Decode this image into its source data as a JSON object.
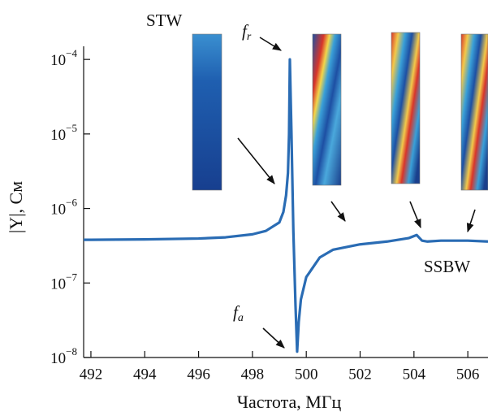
{
  "chart_data": {
    "type": "line",
    "xlabel": "Частота, МГц",
    "ylabel": "|Y|, См",
    "log_y": true,
    "xlim": [
      491.73,
      506.75
    ],
    "ylim": [
      1e-08,
      0.00015
    ],
    "xticks": [
      492,
      494,
      496,
      498,
      500,
      502,
      504,
      506
    ],
    "yticks": [
      {
        "value": 1e-08,
        "label": "10",
        "exponent": "−8"
      },
      {
        "value": 1e-07,
        "label": "10",
        "exponent": "−7"
      },
      {
        "value": 1e-06,
        "label": "10",
        "exponent": "−6"
      },
      {
        "value": 1e-05,
        "label": "10",
        "exponent": "−5"
      },
      {
        "value": 0.0001,
        "label": "10",
        "exponent": "−4"
      }
    ],
    "series": [
      {
        "color": "#2a6cb4",
        "x": [
          491.73,
          492,
          494,
          496,
          497,
          498,
          498.5,
          499,
          499.15,
          499.25,
          499.32,
          499.36,
          499.39,
          499.45,
          499.52,
          499.6,
          499.66,
          499.72,
          499.8,
          500,
          500.5,
          501,
          502,
          503,
          503.8,
          504.1,
          504.3,
          504.5,
          505,
          506,
          506.75
        ],
        "values": [
          3.8e-07,
          3.8e-07,
          3.85e-07,
          3.95e-07,
          4.1e-07,
          4.5e-07,
          5e-07,
          6.5e-07,
          9e-07,
          1.5e-06,
          3e-06,
          1e-05,
          0.0001,
          1e-05,
          5e-07,
          5e-08,
          1.2e-08,
          3e-08,
          6e-08,
          1.2e-07,
          2.2e-07,
          2.8e-07,
          3.3e-07,
          3.6e-07,
          4e-07,
          4.4e-07,
          3.7e-07,
          3.6e-07,
          3.7e-07,
          3.7e-07,
          3.6e-07
        ]
      }
    ],
    "annotations": [
      {
        "text": "STW"
      },
      {
        "text": "f",
        "subscript": "r"
      },
      {
        "text": "f",
        "subscript": "a"
      },
      {
        "text": "SSBW"
      }
    ]
  }
}
